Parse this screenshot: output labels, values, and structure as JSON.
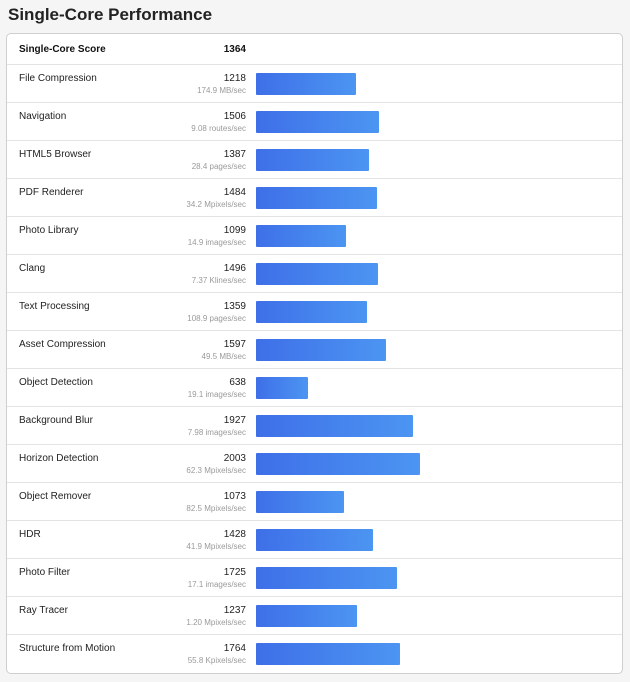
{
  "header": {
    "title": "Single-Core Performance"
  },
  "score": {
    "label": "Single-Core Score",
    "value": "1364"
  },
  "chart_data": {
    "type": "bar",
    "orientation": "horizontal",
    "xlim": [
      0,
      2500
    ],
    "colors": {
      "bar_start": "#3e6fe8",
      "bar_end": "#4c95f2"
    },
    "rows": [
      {
        "name": "File Compression",
        "value": 1218,
        "sub": "174.9 MB/sec"
      },
      {
        "name": "Navigation",
        "value": 1506,
        "sub": "9.08 routes/sec"
      },
      {
        "name": "HTML5 Browser",
        "value": 1387,
        "sub": "28.4 pages/sec"
      },
      {
        "name": "PDF Renderer",
        "value": 1484,
        "sub": "34.2 Mpixels/sec"
      },
      {
        "name": "Photo Library",
        "value": 1099,
        "sub": "14.9 images/sec"
      },
      {
        "name": "Clang",
        "value": 1496,
        "sub": "7.37 Klines/sec"
      },
      {
        "name": "Text Processing",
        "value": 1359,
        "sub": "108.9 pages/sec"
      },
      {
        "name": "Asset Compression",
        "value": 1597,
        "sub": "49.5 MB/sec"
      },
      {
        "name": "Object Detection",
        "value": 638,
        "sub": "19.1 images/sec"
      },
      {
        "name": "Background Blur",
        "value": 1927,
        "sub": "7.98 images/sec"
      },
      {
        "name": "Horizon Detection",
        "value": 2003,
        "sub": "62.3 Mpixels/sec"
      },
      {
        "name": "Object Remover",
        "value": 1073,
        "sub": "82.5 Mpixels/sec"
      },
      {
        "name": "HDR",
        "value": 1428,
        "sub": "41.9 Mpixels/sec"
      },
      {
        "name": "Photo Filter",
        "value": 1725,
        "sub": "17.1 images/sec"
      },
      {
        "name": "Ray Tracer",
        "value": 1237,
        "sub": "1.20 Mpixels/sec"
      },
      {
        "name": "Structure from Motion",
        "value": 1764,
        "sub": "55.8 Kpixels/sec"
      }
    ]
  }
}
